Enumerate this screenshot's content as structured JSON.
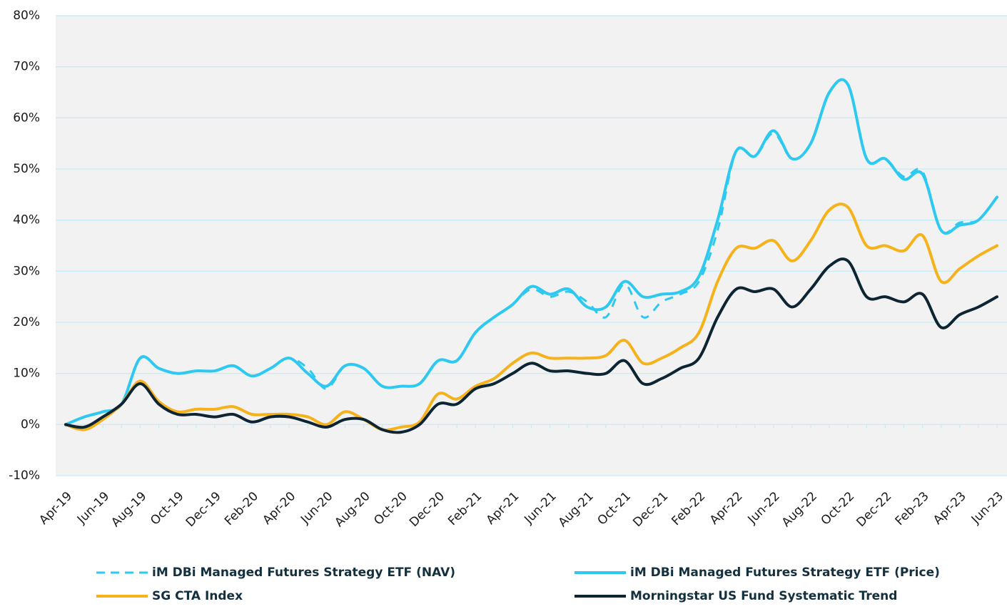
{
  "chart_data": {
    "type": "line",
    "categories": [
      "Apr-19",
      null,
      "Jun-19",
      null,
      "Aug-19",
      null,
      "Oct-19",
      null,
      "Dec-19",
      null,
      "Feb-20",
      null,
      "Apr-20",
      null,
      "Jun-20",
      null,
      "Aug-20",
      null,
      "Oct-20",
      null,
      "Dec-20",
      null,
      "Feb-21",
      null,
      "Apr-21",
      null,
      "Jun-21",
      null,
      "Aug-21",
      null,
      "Oct-21",
      null,
      "Dec-21",
      null,
      "Feb-22",
      null,
      "Apr-22",
      null,
      "Jun-22",
      null,
      "Aug-22",
      null,
      "Oct-22",
      null,
      "Dec-22",
      null,
      "Feb-23",
      null,
      "Apr-23",
      null,
      "Jun-23"
    ],
    "series": [
      {
        "name": "iM DBi Managed Futures Strategy ETF (NAV)",
        "color": "#2ec9f0",
        "dashed": true,
        "values": [
          0,
          1.5,
          2.5,
          4,
          13,
          11,
          10,
          10.5,
          10.5,
          11.5,
          9.5,
          11,
          13,
          11,
          7,
          11.5,
          11,
          7.5,
          7.5,
          8,
          12.5,
          12.5,
          18,
          21,
          23.5,
          26.5,
          25,
          26,
          24,
          21,
          27.5,
          21,
          24,
          25.5,
          28,
          38,
          53.5,
          52.5,
          57,
          52,
          55,
          65,
          66.5,
          52,
          52,
          48.5,
          49.5,
          38,
          39.5,
          40,
          44.5
        ]
      },
      {
        "name": "iM DBi Managed Futures Strategy ETF (Price)",
        "color": "#2ec9f0",
        "dashed": false,
        "values": [
          0,
          1.5,
          2.5,
          4,
          13,
          11,
          10,
          10.5,
          10.5,
          11.5,
          9.5,
          11,
          13,
          10,
          7.5,
          11.5,
          11,
          7.5,
          7.5,
          8,
          12.5,
          12.5,
          18,
          21,
          23.5,
          27,
          25.5,
          26.5,
          23,
          23,
          28,
          25,
          25.5,
          26,
          29,
          40,
          53.5,
          52.5,
          57.5,
          52,
          55,
          65,
          66.5,
          52,
          52,
          48,
          49,
          38,
          39,
          40,
          44.5
        ]
      },
      {
        "name": "SG CTA Index",
        "color": "#f5b21a",
        "dashed": false,
        "values": [
          0,
          -1,
          1,
          4,
          8.5,
          4.5,
          2.5,
          3,
          3,
          3.5,
          2,
          2,
          2,
          1.5,
          0,
          2.5,
          1,
          -1,
          -0.5,
          0.5,
          6,
          5,
          7.5,
          9,
          12,
          14,
          13,
          13,
          13,
          13.5,
          16.5,
          12,
          13,
          15,
          18,
          28,
          34.5,
          34.5,
          36,
          32,
          36,
          42,
          42.5,
          35,
          35,
          34,
          37,
          28,
          30.5,
          33,
          35
        ]
      },
      {
        "name": "Morningstar US Fund Systematic Trend",
        "color": "#0d2433",
        "dashed": false,
        "values": [
          0,
          -0.5,
          1.5,
          4,
          8,
          4,
          2,
          2,
          1.5,
          2,
          0.5,
          1.5,
          1.5,
          0.5,
          -0.5,
          1,
          1,
          -1,
          -1.5,
          0,
          4,
          4,
          7,
          8,
          10,
          12,
          10.5,
          10.5,
          10,
          10,
          12.5,
          8,
          9,
          11,
          13,
          21,
          26.5,
          26,
          26.5,
          23,
          26.5,
          31,
          32,
          25,
          25,
          24,
          25.5,
          19,
          21.5,
          23,
          25
        ]
      }
    ],
    "ylim": [
      -10,
      80
    ],
    "yticks": [
      {
        "value": -10,
        "label": "-10%"
      },
      {
        "value": 0,
        "label": "0%"
      },
      {
        "value": 10,
        "label": "10%"
      },
      {
        "value": 20,
        "label": "20%"
      },
      {
        "value": 30,
        "label": "30%"
      },
      {
        "value": 40,
        "label": "40%"
      },
      {
        "value": 50,
        "label": "50%"
      },
      {
        "value": 60,
        "label": "60%"
      },
      {
        "value": 70,
        "label": "70%"
      },
      {
        "value": 80,
        "label": "80%"
      }
    ],
    "grid": true,
    "legend": "bottom"
  }
}
